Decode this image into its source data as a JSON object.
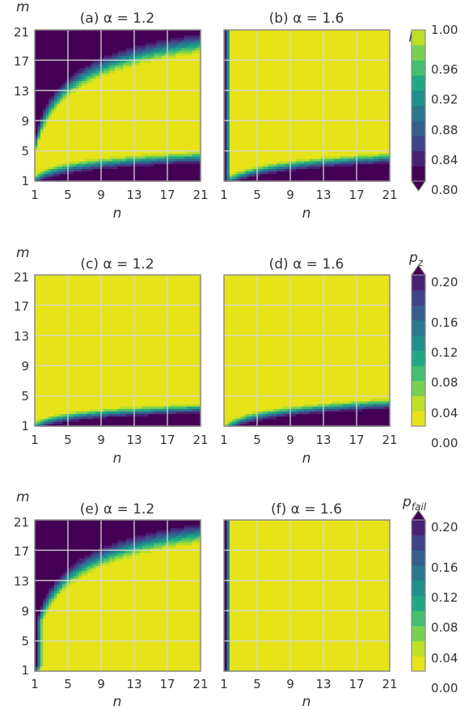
{
  "figure": {
    "colormap": [
      "#440154",
      "#482374",
      "#404387",
      "#345f8d",
      "#29788e",
      "#20908c",
      "#22a784",
      "#44bf70",
      "#7ad151",
      "#bddf26",
      "#e6e419"
    ]
  },
  "chart_data": [
    {
      "type": "heatmap",
      "id": "a",
      "title": "(a) α = 1.2",
      "xlabel": "n",
      "ylabel": "m",
      "x_ticks": [
        "1",
        "5",
        "9",
        "13",
        "17",
        "21"
      ],
      "y_ticks": [
        "1",
        "5",
        "9",
        "13",
        "17",
        "21"
      ],
      "xlim": [
        1,
        21
      ],
      "ylim": [
        1,
        21
      ],
      "grid": true,
      "colorbar": "pi"
    },
    {
      "type": "heatmap",
      "id": "b",
      "title": "(b) α = 1.6",
      "xlabel": "n",
      "ylabel": "",
      "x_ticks": [
        "1",
        "5",
        "9",
        "13",
        "17",
        "21"
      ],
      "xlim": [
        1,
        21
      ],
      "ylim": [
        1,
        21
      ],
      "grid": true,
      "colorbar": "pi"
    },
    {
      "type": "heatmap",
      "id": "c",
      "title": "(c) α = 1.2",
      "xlabel": "n",
      "ylabel": "m",
      "x_ticks": [
        "1",
        "5",
        "9",
        "13",
        "17",
        "21"
      ],
      "y_ticks": [
        "1",
        "5",
        "9",
        "13",
        "17",
        "21"
      ],
      "xlim": [
        1,
        21
      ],
      "ylim": [
        1,
        21
      ],
      "grid": true,
      "colorbar": "pz"
    },
    {
      "type": "heatmap",
      "id": "d",
      "title": "(d) α = 1.6",
      "xlabel": "n",
      "ylabel": "",
      "x_ticks": [
        "1",
        "5",
        "9",
        "13",
        "17",
        "21"
      ],
      "xlim": [
        1,
        21
      ],
      "ylim": [
        1,
        21
      ],
      "grid": true,
      "colorbar": "pz"
    },
    {
      "type": "heatmap",
      "id": "e",
      "title": "(e) α = 1.2",
      "xlabel": "n",
      "ylabel": "m",
      "x_ticks": [
        "1",
        "5",
        "9",
        "13",
        "17",
        "21"
      ],
      "y_ticks": [
        "1",
        "5",
        "9",
        "13",
        "17",
        "21"
      ],
      "xlim": [
        1,
        21
      ],
      "ylim": [
        1,
        21
      ],
      "grid": true,
      "colorbar": "pfail"
    },
    {
      "type": "heatmap",
      "id": "f",
      "title": "(f) α = 1.6",
      "xlabel": "n",
      "ylabel": "",
      "x_ticks": [
        "1",
        "5",
        "9",
        "13",
        "17",
        "21"
      ],
      "xlim": [
        1,
        21
      ],
      "ylim": [
        1,
        21
      ],
      "grid": true,
      "colorbar": "pfail"
    }
  ],
  "colorbars": {
    "pi": {
      "label_base": "p",
      "label_sub": "i",
      "min": 0.8,
      "max": 1.0,
      "ticks": [
        "0.80",
        "0.84",
        "0.88",
        "0.92",
        "0.96",
        "1.00"
      ],
      "reversed": false,
      "extend": "min"
    },
    "pz": {
      "label_base": "p",
      "label_sub": "z",
      "min": 0.0,
      "max": 0.2,
      "ticks": [
        "0.00",
        "0.04",
        "0.08",
        "0.12",
        "0.16",
        "0.20"
      ],
      "reversed": true,
      "extend": "max"
    },
    "pfail": {
      "label_base": "p",
      "label_sub": "fail",
      "min": 0.0,
      "max": 0.2,
      "ticks": [
        "0.00",
        "0.04",
        "0.08",
        "0.12",
        "0.16",
        "0.20"
      ],
      "reversed": true,
      "extend": "max"
    }
  }
}
